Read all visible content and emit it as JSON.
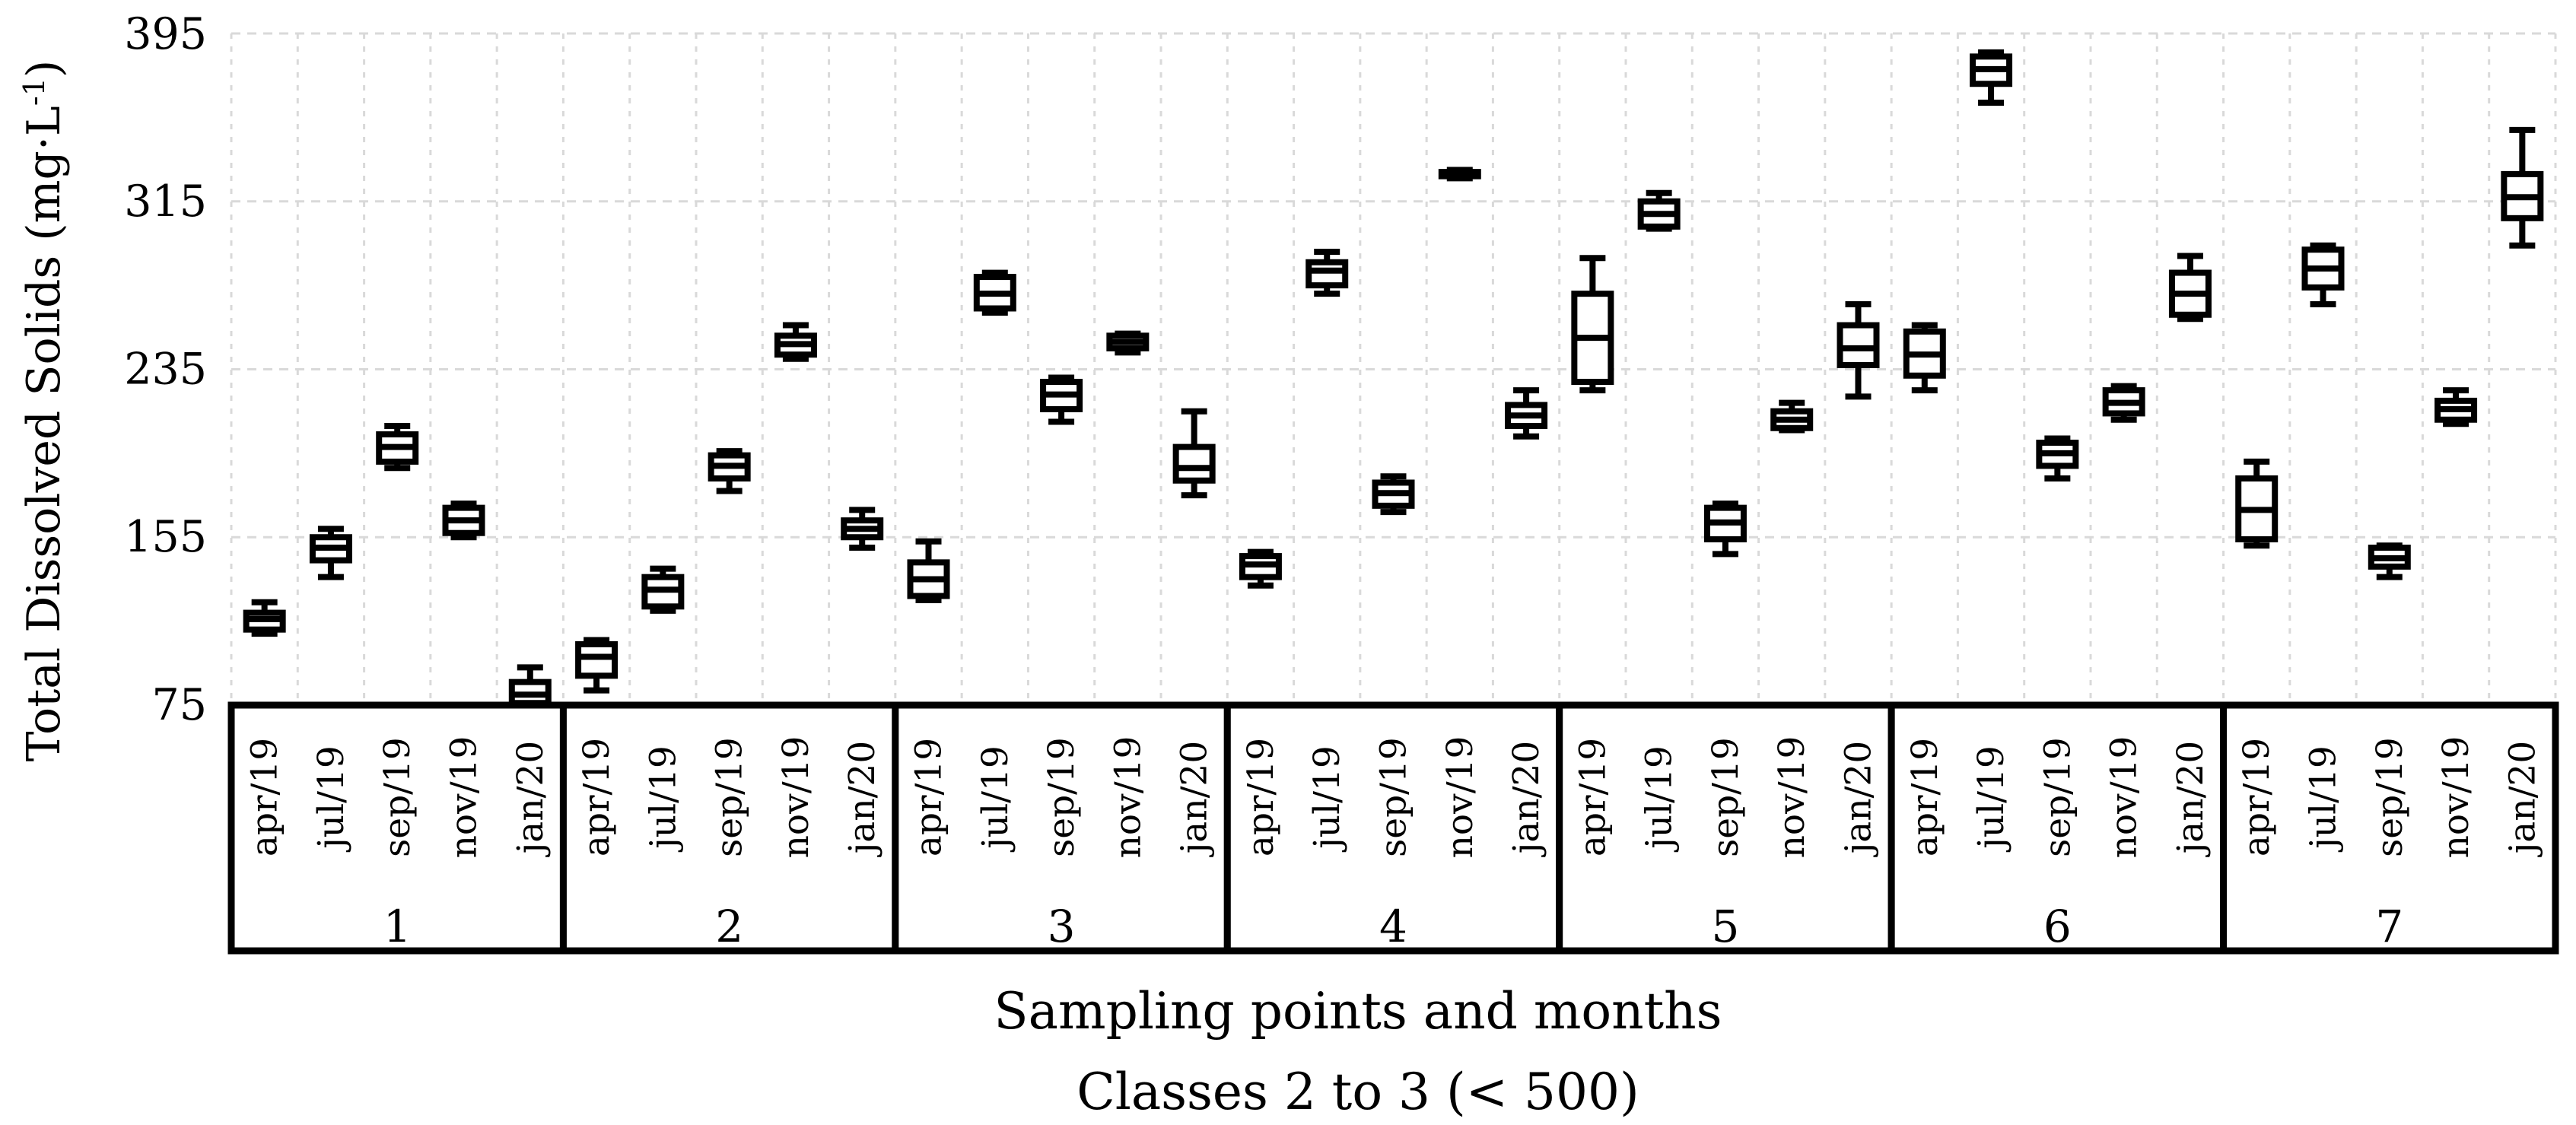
{
  "figure": {
    "background": "#ffffff",
    "ink_color": "#000000",
    "grid_color": "#d9d9d9"
  },
  "chart_data": {
    "type": "box",
    "title": "",
    "xlabel": "Sampling points and months",
    "xlabel2": "Classes 2 to 3 (< 500)",
    "ylabel": "Total Dissolved Solids (mg·L⁻¹)",
    "ylabel_render": {
      "pre": "Total Dissolved Solids (mg·L",
      "sup": "-1",
      "post": ")"
    },
    "ylim": [
      75,
      395
    ],
    "yticks": [
      395,
      315,
      235,
      155,
      75
    ],
    "grid": "light dashed vertical line per month slot, light dashed horizontal line per y tick",
    "legend_position": "none",
    "box_stats_order": [
      "min",
      "q1",
      "median",
      "q3",
      "max"
    ],
    "months": [
      "apr/19",
      "jul/19",
      "sep/19",
      "nov/19",
      "jan/20"
    ],
    "groups": [
      {
        "label": "1",
        "boxes": [
          [
            109,
            111,
            116,
            119,
            124
          ],
          [
            136,
            144,
            150,
            155,
            159
          ],
          [
            188,
            191,
            198,
            204,
            208
          ],
          [
            155,
            157,
            163,
            169,
            171
          ],
          [
            75,
            76,
            80,
            86,
            93
          ]
        ]
      },
      {
        "label": "2",
        "boxes": [
          [
            82,
            89,
            98,
            104,
            106
          ],
          [
            120,
            122,
            130,
            136,
            140
          ],
          [
            177,
            183,
            189,
            194,
            196
          ],
          [
            240,
            242,
            247,
            251,
            256
          ],
          [
            150,
            155,
            159,
            163,
            168
          ]
        ]
      },
      {
        "label": "3",
        "boxes": [
          [
            125,
            127,
            135,
            143,
            153
          ],
          [
            262,
            264,
            271,
            279,
            281
          ],
          [
            210,
            216,
            223,
            229,
            231
          ],
          [
            243,
            245,
            248,
            251,
            252
          ],
          [
            175,
            182,
            188,
            198,
            215
          ]
        ]
      },
      {
        "label": "4",
        "boxes": [
          [
            132,
            136,
            142,
            146,
            148
          ],
          [
            271,
            275,
            282,
            286,
            291
          ],
          [
            167,
            170,
            176,
            181,
            184
          ],
          [
            326,
            327,
            328,
            329,
            330
          ],
          [
            203,
            208,
            213,
            218,
            225
          ]
        ]
      },
      {
        "label": "5",
        "boxes": [
          [
            225,
            229,
            250,
            271,
            288
          ],
          [
            302,
            303,
            309,
            315,
            319
          ],
          [
            147,
            154,
            162,
            169,
            171
          ],
          [
            206,
            207,
            211,
            215,
            219
          ],
          [
            222,
            237,
            245,
            256,
            266
          ]
        ]
      },
      {
        "label": "6",
        "boxes": [
          [
            225,
            232,
            242,
            253,
            256
          ],
          [
            362,
            371,
            378,
            384,
            386
          ],
          [
            183,
            189,
            195,
            200,
            202
          ],
          [
            211,
            214,
            219,
            225,
            227
          ],
          [
            259,
            261,
            271,
            281,
            289
          ]
        ]
      },
      {
        "label": "7",
        "boxes": [
          [
            151,
            154,
            168,
            183,
            191
          ],
          [
            266,
            274,
            283,
            292,
            294
          ],
          [
            136,
            141,
            145,
            150,
            151
          ],
          [
            209,
            211,
            216,
            220,
            225
          ],
          [
            294,
            307,
            317,
            328,
            349
          ]
        ]
      }
    ]
  }
}
